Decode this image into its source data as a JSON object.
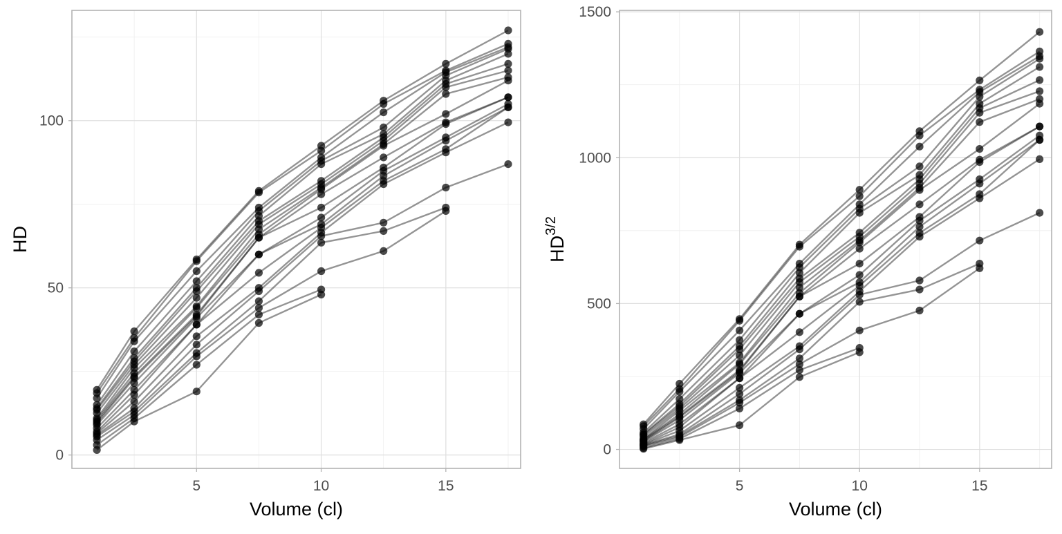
{
  "chart_data": [
    {
      "type": "line",
      "xlabel": "Volume (cl)",
      "ylabel": "HD",
      "ylabel_superscript": "",
      "xlim": [
        0,
        18
      ],
      "ylim": [
        -4,
        133
      ],
      "x_ticks": [
        5,
        10,
        15
      ],
      "y_ticks": [
        0,
        50,
        100
      ],
      "grid": true,
      "markers": true,
      "x": [
        1,
        2.5,
        5,
        7.5,
        10,
        12.5,
        15,
        17.5
      ],
      "series": [
        {
          "values": [
            19.5,
            37.0,
            58.5,
            79.0,
            92.5,
            106.0,
            117.0,
            127.0
          ]
        },
        {
          "values": [
            18.5,
            35.0,
            58.0,
            78.5,
            91.0,
            105.0,
            115.0,
            123.0
          ]
        },
        {
          "values": [
            17.0,
            34.0,
            55.0,
            74.0,
            89.0,
            102.5,
            114.5,
            122.0
          ]
        },
        {
          "values": [
            15.0,
            31.0,
            52.0,
            73.0,
            88.0,
            98.0,
            113.5,
            121.5
          ]
        },
        {
          "values": [
            14.0,
            29.0,
            50.0,
            71.5,
            87.0,
            96.0,
            112.0,
            120.0
          ]
        },
        {
          "values": [
            13.5,
            28.0,
            49.0,
            70.0,
            82.0,
            95.0,
            111.0,
            117.0
          ]
        },
        {
          "values": [
            12.5,
            27.0,
            47.0,
            69.0,
            81.0,
            94.0,
            110.0,
            115.0
          ]
        },
        {
          "values": [
            11.0,
            26.0,
            44.5,
            67.5,
            80.0,
            93.0,
            108.0,
            113.0
          ]
        },
        {
          "values": [
            10.5,
            24.5,
            44.0,
            66.0,
            79.5,
            92.5,
            102.0,
            112.0
          ]
        },
        {
          "values": [
            10.0,
            23.5,
            42.0,
            65.0,
            78.0,
            89.0,
            99.5,
            107.0
          ]
        },
        {
          "values": [
            9.5,
            23.0,
            41.5,
            65.0,
            74.0,
            86.0,
            99.0,
            107.0
          ]
        },
        {
          "values": [
            9.0,
            21.5,
            41.0,
            60.0,
            71.0,
            85.0,
            95.0,
            105.0
          ]
        },
        {
          "values": [
            8.0,
            19.5,
            39.0,
            60.0,
            69.0,
            83.5,
            94.0,
            104.0
          ]
        },
        {
          "values": [
            7.0,
            18.0,
            39.0,
            54.5,
            68.0,
            82.0,
            91.5,
            104.0
          ]
        },
        {
          "values": [
            6.5,
            16.0,
            35.5,
            50.0,
            66.5,
            81.0,
            90.5,
            99.5
          ]
        },
        {
          "values": [
            6.0,
            14.0,
            33.0,
            49.0,
            65.5,
            69.5,
            80.0,
            87.0
          ]
        },
        {
          "values": [
            5.5,
            13.0,
            30.5,
            46.0,
            63.5,
            67.0,
            74.0,
            null
          ]
        },
        {
          "values": [
            4.5,
            12.0,
            29.5,
            44.0,
            55.0,
            61.0,
            73.0,
            null
          ]
        },
        {
          "values": [
            3.0,
            11.0,
            27.0,
            42.0,
            49.5,
            null,
            null,
            null
          ]
        },
        {
          "values": [
            1.5,
            10.0,
            19.0,
            39.5,
            48.0,
            null,
            null,
            null
          ]
        }
      ]
    },
    {
      "type": "line",
      "xlabel": "Volume (cl)",
      "ylabel": "HD",
      "ylabel_superscript": "3/2",
      "xlim": [
        0,
        18
      ],
      "ylim": [
        -65,
        1505
      ],
      "x_ticks": [
        5,
        10,
        15
      ],
      "y_ticks": [
        0,
        500,
        1000,
        1500
      ],
      "grid": true,
      "markers": true,
      "x": [
        1,
        2.5,
        5,
        7.5,
        10,
        12.5,
        15,
        17.5
      ],
      "series": [
        {
          "values": [
            86,
            225,
            447,
            702,
            890,
            1091,
            1265,
            1431
          ]
        },
        {
          "values": [
            80,
            207,
            441,
            695,
            868,
            1076,
            1233,
            1364
          ]
        },
        {
          "values": [
            70,
            198,
            408,
            637,
            840,
            1038,
            1225,
            1348
          ]
        },
        {
          "values": [
            58,
            173,
            375,
            624,
            825,
            970,
            1209,
            1339
          ]
        },
        {
          "values": [
            52,
            156,
            354,
            605,
            811,
            941,
            1185,
            1311
          ]
        },
        {
          "values": [
            50,
            148,
            343,
            586,
            743,
            926,
            1170,
            1266
          ]
        },
        {
          "values": [
            44,
            140,
            322,
            573,
            729,
            911,
            1154,
            1228
          ]
        },
        {
          "values": [
            36,
            133,
            297,
            555,
            716,
            897,
            1122,
            1201
          ]
        },
        {
          "values": [
            34,
            121,
            292,
            536,
            709,
            889,
            1030,
            1185
          ]
        },
        {
          "values": [
            32,
            114,
            272,
            524,
            688,
            840,
            993,
            1107
          ]
        },
        {
          "values": [
            29,
            110,
            267,
            524,
            637,
            797,
            985,
            1107
          ]
        },
        {
          "values": [
            27,
            100,
            262,
            465,
            598,
            784,
            926,
            1076
          ]
        },
        {
          "values": [
            23,
            86,
            244,
            465,
            573,
            763,
            911,
            1061
          ]
        },
        {
          "values": [
            19,
            76,
            244,
            402,
            561,
            742,
            875,
            1061
          ]
        },
        {
          "values": [
            17,
            64,
            211,
            354,
            542,
            729,
            861,
            995
          ]
        },
        {
          "values": [
            15,
            52,
            190,
            343,
            530,
            579,
            716,
            811
          ]
        },
        {
          "values": [
            13,
            47,
            169,
            312,
            506,
            548,
            637,
            null
          ]
        },
        {
          "values": [
            10,
            42,
            160,
            292,
            408,
            476,
            621,
            null
          ]
        },
        {
          "values": [
            5,
            36,
            140,
            272,
            348,
            null,
            null,
            null
          ]
        },
        {
          "values": [
            2,
            32,
            83,
            248,
            333,
            null,
            null,
            null
          ]
        }
      ]
    }
  ]
}
